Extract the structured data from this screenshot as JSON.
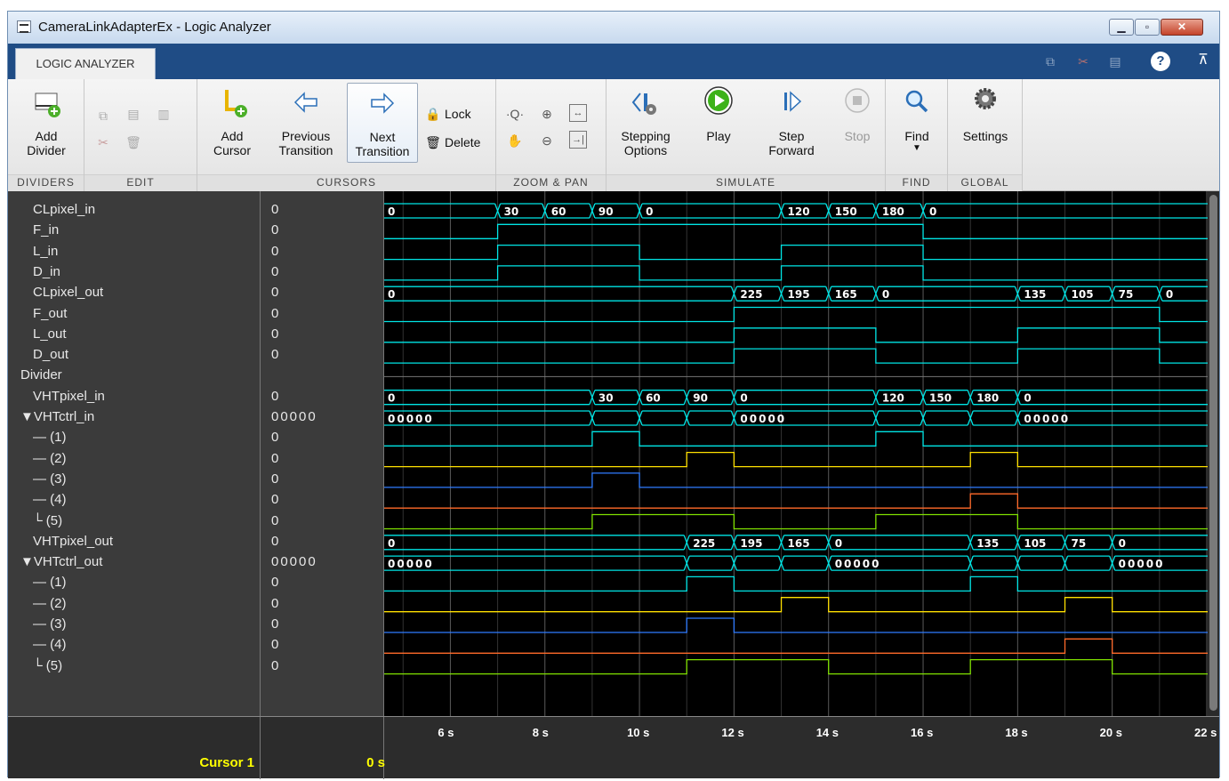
{
  "window": {
    "title": "CameraLinkAdapterEx - Logic Analyzer"
  },
  "tab": {
    "label": "LOGIC ANALYZER"
  },
  "toolstrip": {
    "dividers": {
      "label": "DIVIDERS",
      "add_divider": "Add\nDivider"
    },
    "edit": {
      "label": "EDIT"
    },
    "cursors": {
      "label": "CURSORS",
      "add_cursor": "Add\nCursor",
      "previous_transition": "Previous\nTransition",
      "next_transition": "Next\nTransition",
      "lock": "Lock",
      "delete": "Delete"
    },
    "zoom_pan": {
      "label": "ZOOM & PAN"
    },
    "simulate": {
      "label": "SIMULATE",
      "stepping_options": "Stepping\nOptions",
      "play": "Play",
      "step_forward": "Step\nForward",
      "stop": "Stop"
    },
    "find": {
      "label": "FIND",
      "find": "Find"
    },
    "global": {
      "label": "GLOBAL",
      "settings": "Settings"
    }
  },
  "signals": [
    {
      "name": "CLpixel_in",
      "value": "0",
      "kind": "bus",
      "color": "#00e5e5",
      "indent": 1
    },
    {
      "name": "F_in",
      "value": "0",
      "kind": "bit",
      "color": "#00e5e5",
      "indent": 1
    },
    {
      "name": "L_in",
      "value": "0",
      "kind": "bit",
      "color": "#00e5e5",
      "indent": 1
    },
    {
      "name": "D_in",
      "value": "0",
      "kind": "bit",
      "color": "#00e5e5",
      "indent": 1
    },
    {
      "name": "CLpixel_out",
      "value": "0",
      "kind": "bus",
      "color": "#00e5e5",
      "indent": 1
    },
    {
      "name": "F_out",
      "value": "0",
      "kind": "bit",
      "color": "#00e5e5",
      "indent": 1
    },
    {
      "name": "L_out",
      "value": "0",
      "kind": "bit",
      "color": "#00e5e5",
      "indent": 1
    },
    {
      "name": "D_out",
      "value": "0",
      "kind": "bit",
      "color": "#00e5e5",
      "indent": 1
    },
    {
      "name": "Divider",
      "value": "",
      "kind": "divider",
      "color": "#00e5e5",
      "indent": 0
    },
    {
      "name": "VHTpixel_in",
      "value": "0",
      "kind": "bus",
      "color": "#00e5e5",
      "indent": 1
    },
    {
      "name": "▼VHTctrl_in",
      "value": "00000",
      "kind": "bus",
      "color": "#00e5e5",
      "indent": 0
    },
    {
      "name": "— (1)",
      "value": "0",
      "kind": "bit",
      "color": "#00e5e5",
      "indent": 1
    },
    {
      "name": "— (2)",
      "value": "0",
      "kind": "bit",
      "color": "#ffe000",
      "indent": 1
    },
    {
      "name": "— (3)",
      "value": "0",
      "kind": "bit",
      "color": "#2f7bff",
      "indent": 1
    },
    {
      "name": "— (4)",
      "value": "0",
      "kind": "bit",
      "color": "#ff6a2a",
      "indent": 1
    },
    {
      "name": "└ (5)",
      "value": "0",
      "kind": "bit",
      "color": "#7fe000",
      "indent": 1
    },
    {
      "name": "VHTpixel_out",
      "value": "0",
      "kind": "bus",
      "color": "#00e5e5",
      "indent": 1
    },
    {
      "name": "▼VHTctrl_out",
      "value": "00000",
      "kind": "bus",
      "color": "#00e5e5",
      "indent": 0
    },
    {
      "name": "— (1)",
      "value": "0",
      "kind": "bit",
      "color": "#00e5e5",
      "indent": 1
    },
    {
      "name": "— (2)",
      "value": "0",
      "kind": "bit",
      "color": "#ffe000",
      "indent": 1
    },
    {
      "name": "— (3)",
      "value": "0",
      "kind": "bit",
      "color": "#2f7bff",
      "indent": 1
    },
    {
      "name": "— (4)",
      "value": "0",
      "kind": "bit",
      "color": "#ff6a2a",
      "indent": 1
    },
    {
      "name": "└ (5)",
      "value": "0",
      "kind": "bit",
      "color": "#7fe000",
      "indent": 1
    }
  ],
  "waveforms": [
    {
      "type": "bus",
      "segments": [
        [
          4.6,
          "0"
        ],
        [
          7,
          "30"
        ],
        [
          8,
          "60"
        ],
        [
          9,
          "90"
        ],
        [
          10,
          "0"
        ],
        [
          13,
          "120"
        ],
        [
          14,
          "150"
        ],
        [
          15,
          "180"
        ],
        [
          16,
          "0"
        ]
      ]
    },
    {
      "type": "bit",
      "edges": [
        [
          4.6,
          0
        ],
        [
          7,
          1
        ],
        [
          16,
          0
        ]
      ]
    },
    {
      "type": "bit",
      "edges": [
        [
          4.6,
          0
        ],
        [
          7,
          1
        ],
        [
          10,
          0
        ],
        [
          13,
          1
        ],
        [
          16,
          0
        ]
      ]
    },
    {
      "type": "bit",
      "edges": [
        [
          4.6,
          0
        ],
        [
          7,
          1
        ],
        [
          10,
          0
        ],
        [
          13,
          1
        ],
        [
          16,
          0
        ]
      ]
    },
    {
      "type": "bus",
      "segments": [
        [
          4.6,
          "0"
        ],
        [
          12,
          "225"
        ],
        [
          13,
          "195"
        ],
        [
          14,
          "165"
        ],
        [
          15,
          "0"
        ],
        [
          18,
          "135"
        ],
        [
          19,
          "105"
        ],
        [
          20,
          "75"
        ],
        [
          21,
          "0"
        ]
      ]
    },
    {
      "type": "bit",
      "edges": [
        [
          4.6,
          0
        ],
        [
          12,
          1
        ],
        [
          21,
          0
        ]
      ]
    },
    {
      "type": "bit",
      "edges": [
        [
          4.6,
          0
        ],
        [
          12,
          1
        ],
        [
          15,
          0
        ],
        [
          18,
          1
        ],
        [
          21,
          0
        ]
      ]
    },
    {
      "type": "bit",
      "edges": [
        [
          4.6,
          0
        ],
        [
          12,
          1
        ],
        [
          15,
          0
        ],
        [
          18,
          1
        ],
        [
          21,
          0
        ]
      ]
    },
    {
      "type": "divider"
    },
    {
      "type": "bus",
      "segments": [
        [
          4.6,
          "0"
        ],
        [
          9,
          "30"
        ],
        [
          10,
          "60"
        ],
        [
          11,
          "90"
        ],
        [
          12,
          "0"
        ],
        [
          15,
          "120"
        ],
        [
          16,
          "150"
        ],
        [
          17,
          "180"
        ],
        [
          18,
          "0"
        ]
      ]
    },
    {
      "type": "bus",
      "segments": [
        [
          4.6,
          "00000"
        ],
        [
          9,
          ""
        ],
        [
          10,
          ""
        ],
        [
          11,
          ""
        ],
        [
          12,
          "00000"
        ],
        [
          15,
          ""
        ],
        [
          16,
          ""
        ],
        [
          17,
          ""
        ],
        [
          18,
          "00000"
        ]
      ]
    },
    {
      "type": "bit",
      "edges": [
        [
          4.6,
          0
        ],
        [
          9,
          1
        ],
        [
          10,
          0
        ],
        [
          15,
          1
        ],
        [
          16,
          0
        ]
      ]
    },
    {
      "type": "bit",
      "edges": [
        [
          4.6,
          0
        ],
        [
          11,
          1
        ],
        [
          12,
          0
        ],
        [
          17,
          1
        ],
        [
          18,
          0
        ]
      ]
    },
    {
      "type": "bit",
      "edges": [
        [
          4.6,
          0
        ],
        [
          9,
          1
        ],
        [
          10,
          0
        ]
      ]
    },
    {
      "type": "bit",
      "edges": [
        [
          4.6,
          0
        ],
        [
          17,
          1
        ],
        [
          18,
          0
        ]
      ]
    },
    {
      "type": "bit",
      "edges": [
        [
          4.6,
          0
        ],
        [
          9,
          1
        ],
        [
          12,
          0
        ],
        [
          15,
          1
        ],
        [
          18,
          0
        ]
      ]
    },
    {
      "type": "bus",
      "segments": [
        [
          4.6,
          "0"
        ],
        [
          11,
          "225"
        ],
        [
          12,
          "195"
        ],
        [
          13,
          "165"
        ],
        [
          14,
          "0"
        ],
        [
          17,
          "135"
        ],
        [
          18,
          "105"
        ],
        [
          19,
          "75"
        ],
        [
          20,
          "0"
        ]
      ]
    },
    {
      "type": "bus",
      "segments": [
        [
          4.6,
          "00000"
        ],
        [
          11,
          ""
        ],
        [
          12,
          ""
        ],
        [
          13,
          ""
        ],
        [
          14,
          "00000"
        ],
        [
          17,
          ""
        ],
        [
          18,
          ""
        ],
        [
          19,
          ""
        ],
        [
          20,
          "00000"
        ]
      ]
    },
    {
      "type": "bit",
      "edges": [
        [
          4.6,
          0
        ],
        [
          11,
          1
        ],
        [
          12,
          0
        ],
        [
          17,
          1
        ],
        [
          18,
          0
        ]
      ]
    },
    {
      "type": "bit",
      "edges": [
        [
          4.6,
          0
        ],
        [
          13,
          1
        ],
        [
          14,
          0
        ],
        [
          19,
          1
        ],
        [
          20,
          0
        ]
      ]
    },
    {
      "type": "bit",
      "edges": [
        [
          4.6,
          0
        ],
        [
          11,
          1
        ],
        [
          12,
          0
        ]
      ]
    },
    {
      "type": "bit",
      "edges": [
        [
          4.6,
          0
        ],
        [
          19,
          1
        ],
        [
          20,
          0
        ]
      ]
    },
    {
      "type": "bit",
      "edges": [
        [
          4.6,
          0
        ],
        [
          11,
          1
        ],
        [
          14,
          0
        ],
        [
          17,
          1
        ],
        [
          20,
          0
        ]
      ]
    }
  ],
  "time_axis": {
    "min": 4.6,
    "max": 22,
    "ticks": [
      [
        "6 s",
        6
      ],
      [
        "8 s",
        8
      ],
      [
        "10 s",
        10
      ],
      [
        "12 s",
        12
      ],
      [
        "14 s",
        14
      ],
      [
        "16 s",
        16
      ],
      [
        "18 s",
        18
      ],
      [
        "20 s",
        20
      ],
      [
        "22 s",
        22
      ]
    ]
  },
  "cursor": {
    "name": "Cursor 1",
    "value": "0 s"
  }
}
